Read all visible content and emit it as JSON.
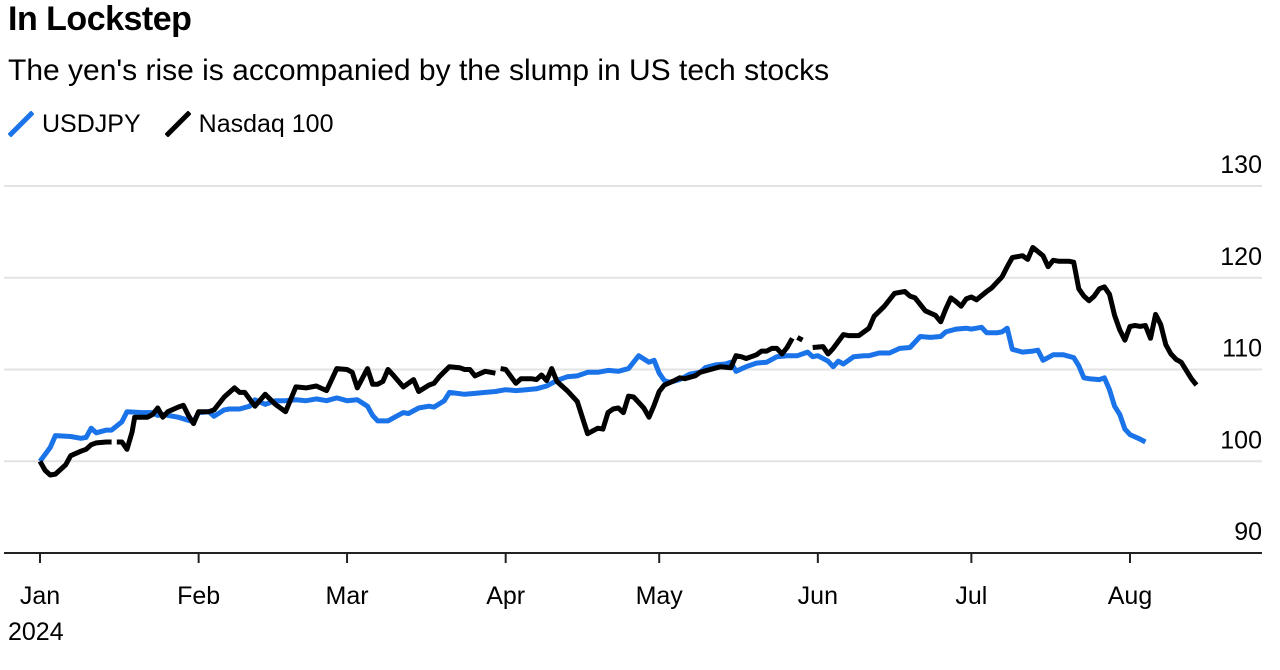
{
  "title": "In Lockstep",
  "subtitle": "The yen's rise is accompanied by the slump in US tech stocks",
  "legend": [
    {
      "label": "USDJPY",
      "color": "#1a73e8"
    },
    {
      "label": "Nasdaq 100",
      "color": "#000000"
    }
  ],
  "chart_data": {
    "type": "line",
    "title": "In Lockstep",
    "subtitle": "The yen's rise is accompanied by the slump in US tech stocks",
    "xlabel": "",
    "ylabel": "",
    "x_ticks": [
      "Jan",
      "Feb",
      "Mar",
      "Apr",
      "May",
      "Jun",
      "Jul",
      "Aug"
    ],
    "x_tick_days": [
      1,
      32,
      61,
      92,
      122,
      153,
      183,
      214
    ],
    "x_year_label": "2024",
    "ylim": [
      90,
      130
    ],
    "y_ticks": [
      90,
      100,
      110,
      120,
      130
    ],
    "grid": true,
    "legend_position": "top-left",
    "series": [
      {
        "name": "USDJPY",
        "color": "#1a73e8",
        "points": [
          [
            1,
            100.0
          ],
          [
            3,
            101.5
          ],
          [
            4,
            102.8
          ],
          [
            7,
            102.7
          ],
          [
            9,
            102.5
          ],
          [
            10,
            102.6
          ],
          [
            11,
            103.6
          ],
          [
            12,
            103.1
          ],
          [
            14,
            103.4
          ],
          [
            15,
            103.4
          ],
          [
            17,
            104.3
          ],
          [
            18,
            105.4
          ],
          [
            21,
            105.3
          ],
          [
            23,
            105.3
          ],
          [
            24,
            105.0
          ],
          [
            25,
            105.1
          ],
          [
            28,
            104.8
          ],
          [
            31,
            104.3
          ],
          [
            32,
            105.3
          ],
          [
            34,
            105.4
          ],
          [
            35,
            104.9
          ],
          [
            37,
            105.6
          ],
          [
            38,
            105.7
          ],
          [
            40,
            105.7
          ],
          [
            42,
            106.0
          ],
          [
            43,
            106.7
          ],
          [
            45,
            106.2
          ],
          [
            47,
            106.6
          ],
          [
            49,
            106.6
          ],
          [
            51,
            106.7
          ],
          [
            53,
            106.6
          ],
          [
            55,
            106.8
          ],
          [
            57,
            106.6
          ],
          [
            59,
            106.9
          ],
          [
            61,
            106.6
          ],
          [
            63,
            106.7
          ],
          [
            65,
            106.0
          ],
          [
            66,
            105.0
          ],
          [
            67,
            104.4
          ],
          [
            69,
            104.4
          ],
          [
            70,
            104.7
          ],
          [
            72,
            105.3
          ],
          [
            73,
            105.2
          ],
          [
            75,
            105.8
          ],
          [
            77,
            106.0
          ],
          [
            78,
            105.9
          ],
          [
            80,
            106.6
          ],
          [
            81,
            107.5
          ],
          [
            84,
            107.3
          ],
          [
            86,
            107.4
          ],
          [
            88,
            107.5
          ],
          [
            90,
            107.6
          ],
          [
            92,
            107.8
          ],
          [
            94,
            107.7
          ],
          [
            96,
            107.8
          ],
          [
            98,
            107.9
          ],
          [
            100,
            108.2
          ],
          [
            102,
            108.8
          ],
          [
            104,
            109.2
          ],
          [
            106,
            109.3
          ],
          [
            108,
            109.7
          ],
          [
            110,
            109.7
          ],
          [
            112,
            109.9
          ],
          [
            114,
            109.8
          ],
          [
            116,
            110.1
          ],
          [
            118,
            111.5
          ],
          [
            120,
            110.8
          ],
          [
            121,
            111.0
          ],
          [
            122,
            109.6
          ],
          [
            123,
            108.8
          ],
          [
            124,
            108.6
          ],
          [
            126,
            108.9
          ],
          [
            128,
            109.5
          ],
          [
            130,
            109.7
          ],
          [
            131,
            110.2
          ],
          [
            133,
            110.5
          ],
          [
            135,
            110.6
          ],
          [
            136,
            110.8
          ],
          [
            137,
            109.8
          ],
          [
            139,
            110.3
          ],
          [
            141,
            110.7
          ],
          [
            143,
            110.8
          ],
          [
            145,
            111.4
          ],
          [
            147,
            111.5
          ],
          [
            149,
            111.5
          ],
          [
            151,
            111.9
          ],
          [
            152,
            111.4
          ],
          [
            153,
            111.5
          ],
          [
            155,
            110.9
          ],
          [
            156,
            110.3
          ],
          [
            157,
            110.9
          ],
          [
            158,
            110.6
          ],
          [
            160,
            111.4
          ],
          [
            162,
            111.5
          ],
          [
            163,
            111.5
          ],
          [
            165,
            111.8
          ],
          [
            167,
            111.8
          ],
          [
            169,
            112.3
          ],
          [
            171,
            112.4
          ],
          [
            173,
            113.6
          ],
          [
            175,
            113.5
          ],
          [
            177,
            113.6
          ],
          [
            178,
            114.1
          ],
          [
            180,
            114.4
          ],
          [
            182,
            114.5
          ],
          [
            183,
            114.4
          ],
          [
            185,
            114.6
          ],
          [
            186,
            114.0
          ],
          [
            188,
            114.0
          ],
          [
            189,
            114.1
          ],
          [
            190,
            114.5
          ],
          [
            191,
            112.2
          ],
          [
            193,
            111.9
          ],
          [
            195,
            112.0
          ],
          [
            196,
            112.1
          ],
          [
            197,
            111.0
          ],
          [
            199,
            111.6
          ],
          [
            201,
            111.6
          ],
          [
            203,
            111.3
          ],
          [
            204,
            110.4
          ],
          [
            205,
            109.1
          ],
          [
            206,
            109.0
          ],
          [
            208,
            108.9
          ],
          [
            209,
            109.1
          ],
          [
            210,
            107.8
          ],
          [
            211,
            106.0
          ],
          [
            212,
            105.1
          ],
          [
            213,
            103.5
          ],
          [
            214,
            102.9
          ],
          [
            216,
            102.4
          ],
          [
            217,
            102.1
          ]
        ]
      },
      {
        "name": "Nasdaq 100",
        "color": "#000000",
        "points": [
          [
            1,
            100.0
          ],
          [
            2,
            99.0
          ],
          [
            3,
            98.5
          ],
          [
            4,
            98.6
          ],
          [
            6,
            99.6
          ],
          [
            7,
            100.6
          ],
          [
            9,
            101.1
          ],
          [
            10,
            101.3
          ],
          [
            11,
            101.8
          ],
          [
            12,
            102.0
          ],
          [
            14,
            102.1
          ],
          [
            15,
            102.1
          ],
          null,
          [
            16,
            102.1
          ],
          [
            17,
            102.1
          ],
          [
            18,
            101.3
          ],
          [
            19,
            103.2
          ],
          [
            19.5,
            104.8
          ],
          [
            21,
            104.8
          ],
          [
            22,
            104.8
          ],
          [
            23,
            105.1
          ],
          [
            24,
            105.8
          ],
          [
            25,
            104.8
          ],
          [
            26,
            105.4
          ],
          [
            28,
            105.9
          ],
          [
            29,
            106.1
          ],
          [
            30,
            105.0
          ],
          [
            31,
            104.1
          ],
          [
            32,
            105.4
          ],
          [
            34,
            105.4
          ],
          [
            35,
            105.6
          ],
          [
            37,
            107.0
          ],
          [
            39,
            108.0
          ],
          [
            40,
            107.5
          ],
          [
            41,
            107.5
          ],
          [
            43,
            106.0
          ],
          [
            45,
            107.3
          ],
          [
            47,
            106.2
          ],
          [
            49,
            105.4
          ],
          [
            51,
            108.1
          ],
          [
            53,
            108.0
          ],
          [
            55,
            108.2
          ],
          [
            57,
            107.7
          ],
          [
            59,
            110.1
          ],
          [
            61,
            110.0
          ],
          [
            62,
            109.7
          ],
          [
            63,
            108.0
          ],
          [
            65,
            110.1
          ],
          [
            66,
            108.4
          ],
          [
            67,
            108.4
          ],
          [
            68,
            108.7
          ],
          [
            69,
            110.0
          ],
          [
            70,
            109.4
          ],
          [
            72,
            108.1
          ],
          [
            74,
            108.9
          ],
          [
            75,
            107.6
          ],
          [
            77,
            108.3
          ],
          [
            78,
            108.5
          ],
          [
            79,
            109.2
          ],
          [
            81,
            110.3
          ],
          [
            83,
            110.2
          ],
          [
            84,
            110.0
          ],
          [
            85,
            110.0
          ],
          [
            86,
            109.3
          ],
          [
            88,
            109.8
          ],
          [
            90,
            109.6
          ],
          null,
          [
            91,
            110.1
          ],
          [
            92,
            110.0
          ],
          [
            94,
            108.5
          ],
          [
            95,
            109.0
          ],
          [
            97,
            109.0
          ],
          [
            98,
            108.9
          ],
          [
            99,
            109.4
          ],
          [
            100,
            108.8
          ],
          [
            101,
            110.1
          ],
          [
            102,
            108.7
          ],
          [
            104,
            107.7
          ],
          [
            106,
            106.5
          ],
          [
            108,
            103.0
          ],
          [
            110,
            103.6
          ],
          [
            111,
            103.5
          ],
          [
            112,
            105.3
          ],
          [
            113,
            105.7
          ],
          [
            114,
            105.8
          ],
          [
            115,
            105.3
          ],
          [
            116,
            107.1
          ],
          [
            117,
            107.0
          ],
          [
            119,
            105.8
          ],
          [
            120,
            104.8
          ],
          [
            121,
            106.1
          ],
          [
            122,
            107.6
          ],
          [
            123,
            108.3
          ],
          [
            125,
            108.8
          ],
          [
            126,
            109.1
          ],
          [
            127,
            109.0
          ],
          [
            129,
            109.3
          ],
          [
            130,
            109.7
          ],
          [
            132,
            110.0
          ],
          [
            134,
            110.3
          ],
          [
            136,
            110.2
          ],
          [
            137,
            111.5
          ],
          [
            138,
            111.4
          ],
          [
            139,
            111.2
          ],
          [
            141,
            111.6
          ],
          [
            142,
            112.0
          ],
          [
            143,
            112.0
          ],
          [
            144,
            112.3
          ],
          [
            145,
            112.3
          ],
          [
            146,
            111.7
          ],
          [
            147,
            112.4
          ],
          [
            148,
            113.4
          ],
          null,
          [
            149,
            113.5
          ],
          [
            150,
            113.2
          ],
          null,
          [
            152,
            112.4
          ],
          [
            154,
            112.5
          ],
          [
            155,
            111.7
          ],
          [
            156,
            112.3
          ],
          [
            158,
            113.8
          ],
          [
            159,
            113.7
          ],
          [
            161,
            113.7
          ],
          [
            163,
            114.5
          ],
          [
            164,
            115.8
          ],
          [
            166,
            116.9
          ],
          [
            168,
            118.3
          ],
          [
            170,
            118.5
          ],
          [
            171,
            118.0
          ],
          [
            172,
            117.8
          ],
          [
            174,
            116.4
          ],
          [
            176,
            115.9
          ],
          [
            177,
            115.2
          ],
          [
            178,
            116.6
          ],
          [
            179,
            117.8
          ],
          [
            180,
            117.4
          ],
          [
            181,
            116.9
          ],
          [
            182,
            117.7
          ],
          [
            183,
            117.9
          ],
          [
            184,
            117.6
          ],
          [
            186,
            118.5
          ],
          [
            187,
            118.9
          ],
          [
            188,
            119.5
          ],
          [
            189,
            120.1
          ],
          [
            190,
            121.2
          ],
          [
            191,
            122.2
          ],
          [
            193,
            122.4
          ],
          [
            194,
            122.0
          ],
          [
            195,
            123.3
          ],
          [
            197,
            122.4
          ],
          [
            198,
            121.2
          ],
          [
            199,
            121.9
          ],
          [
            200,
            121.8
          ],
          [
            202,
            121.8
          ],
          [
            203,
            121.7
          ],
          [
            204,
            118.8
          ],
          [
            205,
            118.0
          ],
          [
            206,
            117.5
          ],
          [
            207,
            118.0
          ],
          [
            208,
            118.8
          ],
          [
            209,
            119.0
          ],
          [
            210,
            118.2
          ],
          [
            211,
            115.9
          ],
          [
            212,
            114.3
          ],
          [
            213,
            113.2
          ],
          [
            214,
            114.7
          ],
          [
            215,
            114.8
          ],
          [
            216,
            114.7
          ],
          [
            217,
            114.8
          ],
          [
            218,
            113.4
          ],
          [
            219,
            116.0
          ],
          [
            220,
            114.9
          ],
          [
            221,
            112.7
          ],
          [
            222,
            111.7
          ],
          [
            223,
            111.1
          ],
          [
            224,
            110.8
          ],
          [
            225,
            109.9
          ],
          [
            226,
            109.0
          ],
          [
            227,
            108.3
          ]
        ]
      }
    ]
  }
}
